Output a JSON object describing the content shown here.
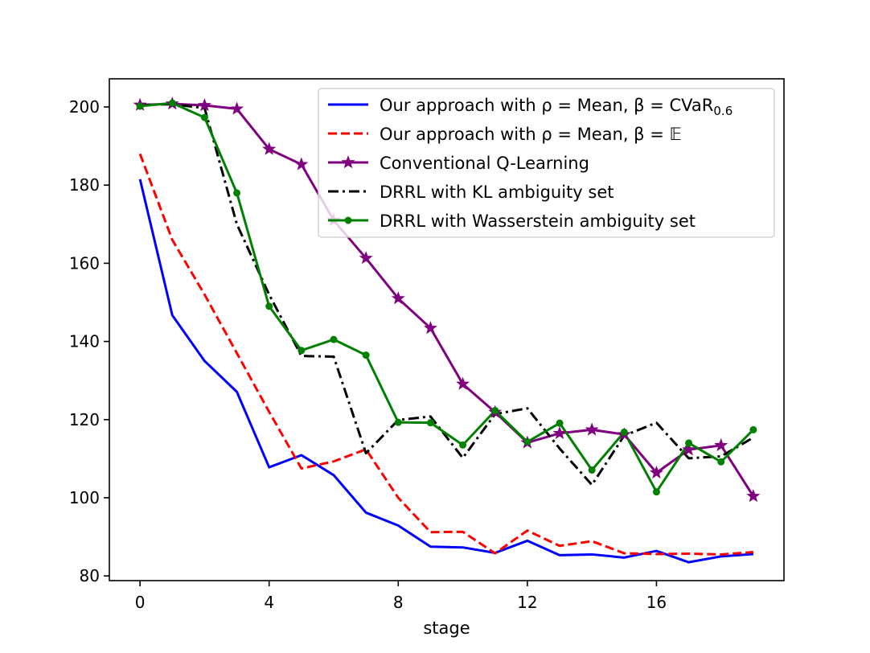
{
  "chart_data": {
    "type": "line",
    "title": "",
    "xlabel": "stage",
    "ylabel": "",
    "xlim": [
      -0.95,
      19.95
    ],
    "ylim": [
      78.8,
      207.2
    ],
    "xticks": [
      0,
      4,
      8,
      12,
      16
    ],
    "yticks": [
      80,
      100,
      120,
      140,
      160,
      180,
      200
    ],
    "grid": false,
    "legend_position": "top-right",
    "x": [
      0,
      1,
      2,
      3,
      4,
      5,
      6,
      7,
      8,
      9,
      10,
      11,
      12,
      13,
      14,
      15,
      16,
      17,
      18,
      19
    ],
    "series": [
      {
        "name": "Our approach with ρ = Mean, β = CVaR",
        "legend_suffix": "0.6",
        "color": "#0000ff",
        "style": "solid",
        "marker": "none",
        "values": [
          181.5,
          146.7,
          135.0,
          127.1,
          107.8,
          110.9,
          105.8,
          96.2,
          92.9,
          87.5,
          87.3,
          85.9,
          89.0,
          85.3,
          85.5,
          84.7,
          86.4,
          83.5,
          85.0,
          85.6
        ]
      },
      {
        "name": "Our approach with ρ = Mean, β = 𝔼",
        "legend_suffix": "",
        "color": "#ff0000",
        "style": "dashed",
        "marker": "none",
        "values": [
          188.0,
          166.0,
          152.0,
          137.0,
          122.0,
          107.5,
          109.3,
          112.4,
          100.0,
          91.2,
          91.3,
          85.8,
          91.6,
          87.7,
          88.9,
          85.8,
          85.6,
          85.7,
          85.5,
          86.1
        ]
      },
      {
        "name": "Conventional Q-Learning",
        "legend_suffix": "",
        "color": "#800080",
        "style": "solid",
        "marker": "star",
        "values": [
          200.5,
          200.8,
          200.4,
          199.5,
          189.2,
          185.3,
          171.0,
          161.3,
          151.0,
          143.4,
          129.1,
          121.9,
          114.1,
          116.5,
          117.4,
          116.2,
          106.4,
          112.3,
          113.4,
          100.4
        ]
      },
      {
        "name": "DRRL with KL ambiguity set",
        "legend_suffix": "",
        "color": "#000000",
        "style": "dashdot",
        "marker": "none",
        "values": [
          200.5,
          200.7,
          199.7,
          170.0,
          152.0,
          136.3,
          136.1,
          111.4,
          119.9,
          120.8,
          110.2,
          121.4,
          122.9,
          112.6,
          103.3,
          115.9,
          119.2,
          110.1,
          110.6,
          115.4
        ]
      },
      {
        "name": "DRRL with Wasserstein ambiguity set",
        "legend_suffix": "",
        "color": "#008000",
        "style": "solid",
        "marker": "dot",
        "values": [
          200.2,
          201.0,
          197.3,
          178.0,
          149.0,
          137.7,
          140.5,
          136.5,
          119.3,
          119.2,
          113.5,
          122.3,
          114.3,
          119.1,
          107.1,
          116.8,
          101.5,
          114.0,
          109.2,
          117.4
        ]
      }
    ]
  }
}
